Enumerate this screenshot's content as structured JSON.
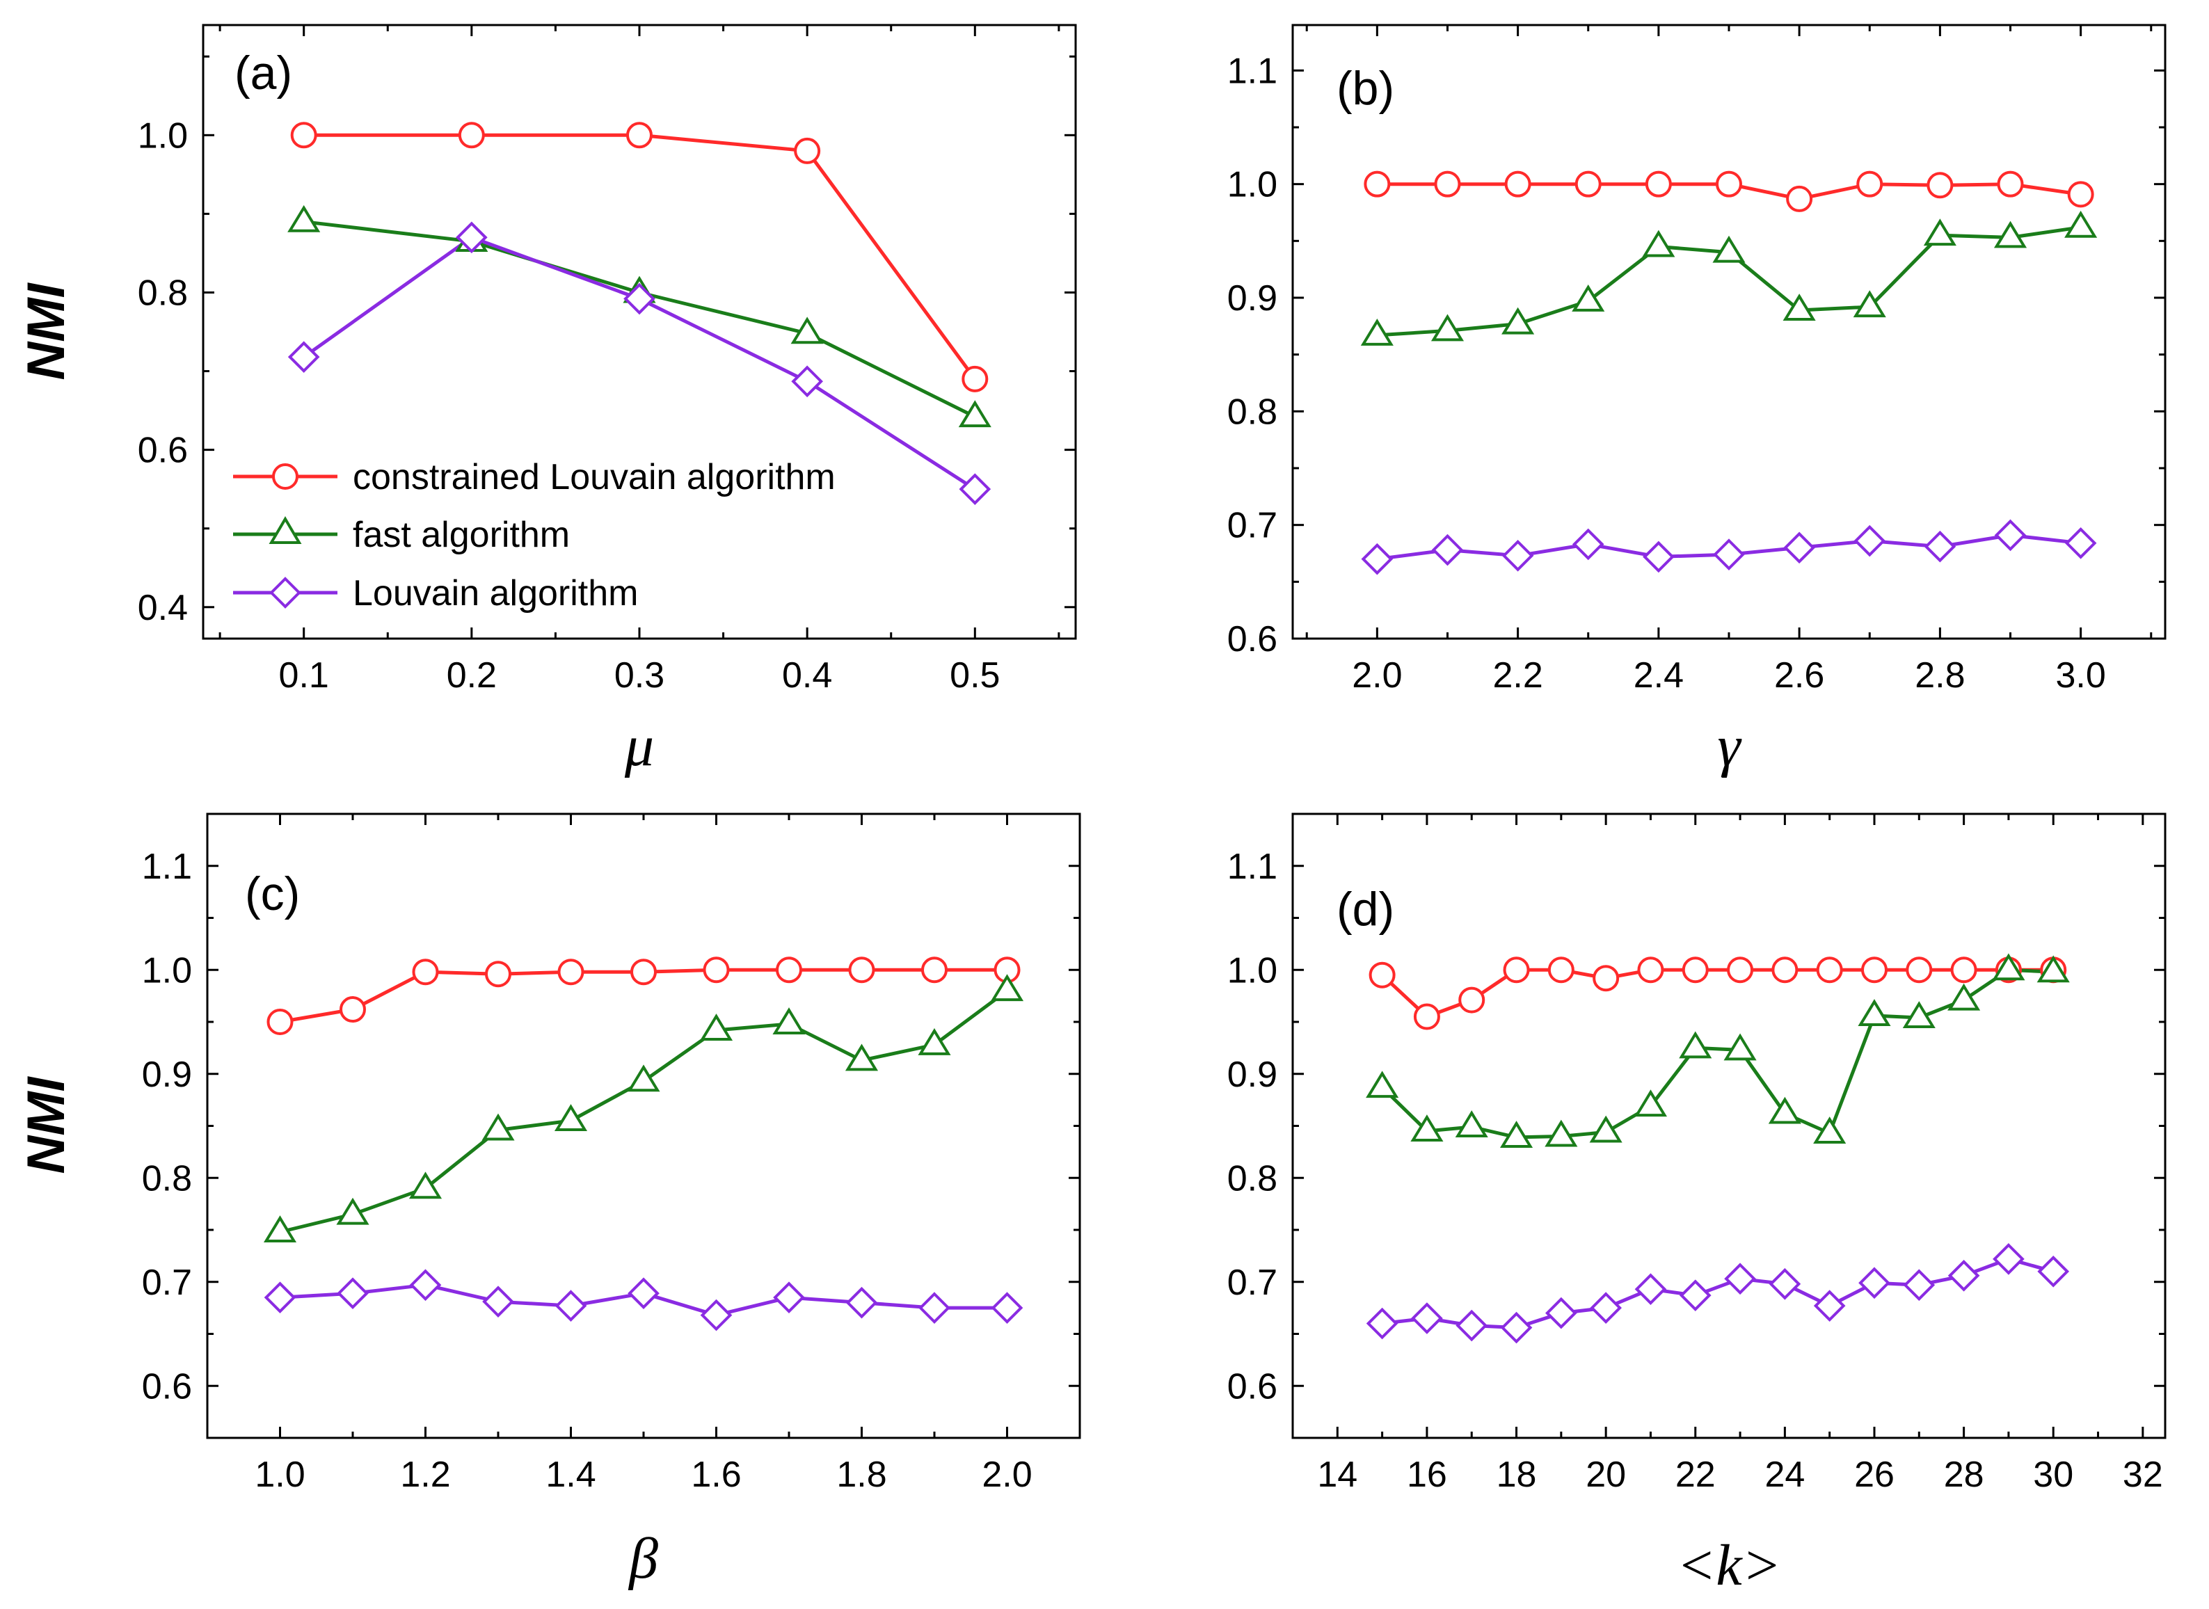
{
  "colors": {
    "constrained": "#ff2a2a",
    "fast": "#1a7d1a",
    "louvain": "#8a2be2"
  },
  "legend": {
    "constrained": "constrained Louvain algorithm",
    "fast": "fast algorithm",
    "louvain": "Louvain algorithm"
  },
  "chart_data": [
    {
      "type": "line",
      "panel": "(a)",
      "xlabel": "μ",
      "ylabel": "NMI",
      "xlim": [
        0.04,
        0.56
      ],
      "ylim": [
        0.36,
        1.14
      ],
      "xticks": [
        0.1,
        0.2,
        0.3,
        0.4,
        0.5
      ],
      "xticklabels": [
        "0.1",
        "0.2",
        "0.3",
        "0.4",
        "0.5"
      ],
      "yticks": [
        0.4,
        0.6,
        0.8,
        1.0
      ],
      "yticklabels": [
        "0.4",
        "0.6",
        "0.8",
        "1.0"
      ],
      "xminor": [
        0.05,
        0.15,
        0.25,
        0.35,
        0.45,
        0.55
      ],
      "yminor": [
        0.5,
        0.7,
        0.9,
        1.1
      ],
      "legend_shown": true,
      "series": [
        {
          "key": "constrained",
          "name": "constrained Louvain algorithm",
          "marker": "circle",
          "x": [
            0.1,
            0.2,
            0.3,
            0.4,
            0.5
          ],
          "y": [
            1.0,
            1.0,
            1.0,
            0.98,
            0.69
          ]
        },
        {
          "key": "fast",
          "name": "fast algorithm",
          "marker": "triangle",
          "x": [
            0.1,
            0.2,
            0.3,
            0.4,
            0.5
          ],
          "y": [
            0.89,
            0.865,
            0.8,
            0.748,
            0.642
          ]
        },
        {
          "key": "louvain",
          "name": "Louvain algorithm",
          "marker": "diamond",
          "x": [
            0.1,
            0.2,
            0.3,
            0.4,
            0.5
          ],
          "y": [
            0.718,
            0.87,
            0.792,
            0.687,
            0.55
          ]
        }
      ]
    },
    {
      "type": "line",
      "panel": "(b)",
      "xlabel": "γ",
      "ylabel": "",
      "xlim": [
        1.88,
        3.12
      ],
      "ylim": [
        0.6,
        1.14
      ],
      "xticks": [
        2.0,
        2.2,
        2.4,
        2.6,
        2.8,
        3.0
      ],
      "xticklabels": [
        "2.0",
        "2.2",
        "2.4",
        "2.6",
        "2.8",
        "3.0"
      ],
      "yticks": [
        0.6,
        0.7,
        0.8,
        0.9,
        1.0,
        1.1
      ],
      "yticklabels": [
        "0.6",
        "0.7",
        "0.8",
        "0.9",
        "1.0",
        "1.1"
      ],
      "xminor": [
        1.9,
        2.1,
        2.3,
        2.5,
        2.7,
        2.9,
        3.1
      ],
      "yminor": [
        0.65,
        0.75,
        0.85,
        0.95,
        1.05
      ],
      "legend_shown": false,
      "series": [
        {
          "key": "constrained",
          "name": "constrained Louvain algorithm",
          "marker": "circle",
          "x": [
            2.0,
            2.1,
            2.2,
            2.3,
            2.4,
            2.5,
            2.6,
            2.7,
            2.8,
            2.9,
            3.0
          ],
          "y": [
            1.0,
            1.0,
            1.0,
            1.0,
            1.0,
            1.0,
            0.987,
            1.0,
            0.999,
            1.0,
            0.991
          ]
        },
        {
          "key": "fast",
          "name": "fast algorithm",
          "marker": "triangle",
          "x": [
            2.0,
            2.1,
            2.2,
            2.3,
            2.4,
            2.5,
            2.6,
            2.7,
            2.8,
            2.9,
            3.0
          ],
          "y": [
            0.867,
            0.871,
            0.877,
            0.897,
            0.945,
            0.94,
            0.889,
            0.892,
            0.955,
            0.953,
            0.962
          ]
        },
        {
          "key": "louvain",
          "name": "Louvain algorithm",
          "marker": "diamond",
          "x": [
            2.0,
            2.1,
            2.2,
            2.3,
            2.4,
            2.5,
            2.6,
            2.7,
            2.8,
            2.9,
            3.0
          ],
          "y": [
            0.67,
            0.678,
            0.673,
            0.683,
            0.672,
            0.674,
            0.68,
            0.686,
            0.681,
            0.691,
            0.684
          ]
        }
      ]
    },
    {
      "type": "line",
      "panel": "(c)",
      "xlabel": "β",
      "ylabel": "NMI",
      "xlim": [
        0.9,
        2.1
      ],
      "ylim": [
        0.55,
        1.15
      ],
      "xticks": [
        1.0,
        1.2,
        1.4,
        1.6,
        1.8,
        2.0
      ],
      "xticklabels": [
        "1.0",
        "1.2",
        "1.4",
        "1.6",
        "1.8",
        "2.0"
      ],
      "yticks": [
        0.6,
        0.7,
        0.8,
        0.9,
        1.0,
        1.1
      ],
      "yticklabels": [
        "0.6",
        "0.7",
        "0.8",
        "0.9",
        "1.0",
        "1.1"
      ],
      "xminor": [
        0.9,
        1.1,
        1.3,
        1.5,
        1.7,
        1.9,
        2.1
      ],
      "yminor": [
        0.65,
        0.75,
        0.85,
        0.95,
        1.05
      ],
      "legend_shown": false,
      "series": [
        {
          "key": "constrained",
          "name": "constrained Louvain algorithm",
          "marker": "circle",
          "x": [
            1.0,
            1.1,
            1.2,
            1.3,
            1.4,
            1.5,
            1.6,
            1.7,
            1.8,
            1.9,
            2.0
          ],
          "y": [
            0.95,
            0.962,
            0.998,
            0.996,
            0.998,
            0.998,
            1.0,
            1.0,
            1.0,
            1.0,
            1.0
          ]
        },
        {
          "key": "fast",
          "name": "fast algorithm",
          "marker": "triangle",
          "x": [
            1.0,
            1.1,
            1.2,
            1.3,
            1.4,
            1.5,
            1.6,
            1.7,
            1.8,
            1.9,
            2.0
          ],
          "y": [
            0.748,
            0.765,
            0.79,
            0.846,
            0.855,
            0.893,
            0.942,
            0.948,
            0.913,
            0.928,
            0.98
          ]
        },
        {
          "key": "louvain",
          "name": "Louvain algorithm",
          "marker": "diamond",
          "x": [
            1.0,
            1.1,
            1.2,
            1.3,
            1.4,
            1.5,
            1.6,
            1.7,
            1.8,
            1.9,
            2.0
          ],
          "y": [
            0.685,
            0.689,
            0.697,
            0.681,
            0.677,
            0.689,
            0.668,
            0.685,
            0.68,
            0.675,
            0.675
          ]
        }
      ]
    },
    {
      "type": "line",
      "panel": "(d)",
      "xlabel": "<k>",
      "ylabel": "",
      "xlim": [
        13,
        32.5
      ],
      "ylim": [
        0.55,
        1.15
      ],
      "xticks": [
        14,
        16,
        18,
        20,
        22,
        24,
        26,
        28,
        30,
        32
      ],
      "xticklabels": [
        "14",
        "16",
        "18",
        "20",
        "22",
        "24",
        "26",
        "28",
        "30",
        "32"
      ],
      "yticks": [
        0.6,
        0.7,
        0.8,
        0.9,
        1.0,
        1.1
      ],
      "yticklabels": [
        "0.6",
        "0.7",
        "0.8",
        "0.9",
        "1.0",
        "1.1"
      ],
      "xminor": [
        13,
        15,
        17,
        19,
        21,
        23,
        25,
        27,
        29,
        31
      ],
      "yminor": [
        0.65,
        0.75,
        0.85,
        0.95,
        1.05
      ],
      "legend_shown": false,
      "series": [
        {
          "key": "constrained",
          "name": "constrained Louvain algorithm",
          "marker": "circle",
          "x": [
            15,
            16,
            17,
            18,
            19,
            20,
            21,
            22,
            23,
            24,
            25,
            26,
            27,
            28,
            29,
            30
          ],
          "y": [
            0.995,
            0.955,
            0.971,
            1.0,
            1.0,
            0.992,
            1.0,
            1.0,
            1.0,
            1.0,
            1.0,
            1.0,
            1.0,
            1.0,
            1.0,
            1.0
          ]
        },
        {
          "key": "fast",
          "name": "fast algorithm",
          "marker": "triangle",
          "x": [
            15,
            16,
            17,
            18,
            19,
            20,
            21,
            22,
            23,
            24,
            25,
            26,
            27,
            28,
            29,
            30
          ],
          "y": [
            0.887,
            0.845,
            0.849,
            0.839,
            0.84,
            0.844,
            0.869,
            0.925,
            0.923,
            0.862,
            0.843,
            0.956,
            0.954,
            0.971,
            1.0,
            0.998
          ]
        },
        {
          "key": "louvain",
          "name": "Louvain algorithm",
          "marker": "diamond",
          "x": [
            15,
            16,
            17,
            18,
            19,
            20,
            21,
            22,
            23,
            24,
            25,
            26,
            27,
            28,
            29,
            30
          ],
          "y": [
            0.66,
            0.665,
            0.658,
            0.656,
            0.67,
            0.675,
            0.693,
            0.687,
            0.703,
            0.698,
            0.677,
            0.699,
            0.697,
            0.706,
            0.722,
            0.71
          ]
        }
      ]
    }
  ]
}
